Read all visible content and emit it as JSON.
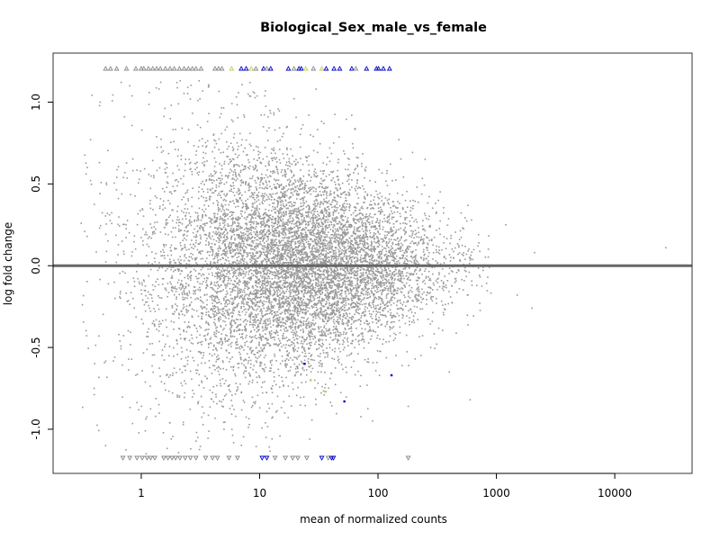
{
  "chart_data": {
    "type": "scatter",
    "subtype": "MA plot",
    "title": "Biological_Sex_male_vs_female",
    "xlabel": "mean of normalized counts",
    "ylabel": "log fold change",
    "x_scale": "log10",
    "xlim": [
      0.18,
      45000
    ],
    "ylim": [
      -1.27,
      1.3
    ],
    "x_ticks": [
      {
        "value": 1,
        "label": "1"
      },
      {
        "value": 10,
        "label": "10"
      },
      {
        "value": 100,
        "label": "100"
      },
      {
        "value": 1000,
        "label": "1000"
      },
      {
        "value": 10000,
        "label": "10000"
      }
    ],
    "y_ticks": [
      {
        "value": -1.0,
        "label": "-1.0"
      },
      {
        "value": -0.5,
        "label": "-0.5"
      },
      {
        "value": 0.0,
        "label": "0.0"
      },
      {
        "value": 0.5,
        "label": "0.5"
      },
      {
        "value": 1.0,
        "label": "1.0"
      }
    ],
    "reference_line": {
      "y": 0,
      "color": "#666666"
    },
    "grid": false,
    "legend": "none",
    "colors": {
      "not_significant": "#999999",
      "significant": "#0000cc",
      "moderate": "#c8c85a"
    },
    "series": [
      {
        "points_ns": [
          [
            0.35,
            0.6
          ],
          [
            0.4,
            -0.75
          ],
          [
            0.45,
            1.0
          ],
          [
            0.5,
            -1.1
          ],
          [
            0.8,
            1.1
          ],
          [
            1.1,
            -1.15
          ],
          [
            2.0,
            1.12
          ],
          [
            3.0,
            -1.05
          ],
          [
            150,
            0.77
          ],
          [
            250,
            0.65
          ],
          [
            400,
            -0.65
          ],
          [
            600,
            -0.82
          ],
          [
            1200,
            0.25
          ],
          [
            1500,
            -0.18
          ],
          [
            2000,
            -0.26
          ],
          [
            2100,
            0.08
          ],
          [
            27000,
            0.11
          ],
          [
            180,
            -0.86
          ],
          [
            90,
            -0.95
          ],
          [
            60,
            0.92
          ],
          [
            30,
            1.08
          ],
          [
            0.6,
            -0.2
          ],
          [
            5.0,
            -1.0
          ],
          [
            8.0,
            1.05
          ]
        ],
        "points_sig": [
          [
            24,
            -0.6
          ],
          [
            52,
            -0.83
          ],
          [
            130,
            -0.67
          ]
        ],
        "points_moderate": [
          [
            36,
            -0.77
          ],
          [
            27,
            -0.7
          ]
        ],
        "clipped_high": [
          {
            "x": 0.5,
            "sig": "ns"
          },
          {
            "x": 0.55,
            "sig": "ns"
          },
          {
            "x": 0.62,
            "sig": "ns"
          },
          {
            "x": 0.75,
            "sig": "ns"
          },
          {
            "x": 0.9,
            "sig": "ns"
          },
          {
            "x": 1.0,
            "sig": "ns"
          },
          {
            "x": 1.05,
            "sig": "ns"
          },
          {
            "x": 1.15,
            "sig": "ns"
          },
          {
            "x": 1.25,
            "sig": "ns"
          },
          {
            "x": 1.35,
            "sig": "ns"
          },
          {
            "x": 1.45,
            "sig": "ns"
          },
          {
            "x": 1.6,
            "sig": "ns"
          },
          {
            "x": 1.75,
            "sig": "ns"
          },
          {
            "x": 1.9,
            "sig": "ns"
          },
          {
            "x": 2.1,
            "sig": "ns"
          },
          {
            "x": 2.3,
            "sig": "ns"
          },
          {
            "x": 2.5,
            "sig": "ns"
          },
          {
            "x": 2.7,
            "sig": "ns"
          },
          {
            "x": 2.9,
            "sig": "ns"
          },
          {
            "x": 3.2,
            "sig": "ns"
          },
          {
            "x": 4.2,
            "sig": "ns"
          },
          {
            "x": 4.5,
            "sig": "ns"
          },
          {
            "x": 4.8,
            "sig": "ns"
          },
          {
            "x": 5.8,
            "sig": "moderate"
          },
          {
            "x": 7.0,
            "sig": "sig"
          },
          {
            "x": 7.7,
            "sig": "sig"
          },
          {
            "x": 8.5,
            "sig": "moderate"
          },
          {
            "x": 9.3,
            "sig": "ns"
          },
          {
            "x": 10.8,
            "sig": "sig"
          },
          {
            "x": 11.5,
            "sig": "ns"
          },
          {
            "x": 12.4,
            "sig": "sig"
          },
          {
            "x": 17.5,
            "sig": "sig"
          },
          {
            "x": 19.5,
            "sig": "ns"
          },
          {
            "x": 21.5,
            "sig": "sig"
          },
          {
            "x": 22.5,
            "sig": "sig"
          },
          {
            "x": 24.5,
            "sig": "moderate"
          },
          {
            "x": 28.5,
            "sig": "ns"
          },
          {
            "x": 33.5,
            "sig": "moderate"
          },
          {
            "x": 36.5,
            "sig": "sig"
          },
          {
            "x": 42.5,
            "sig": "sig"
          },
          {
            "x": 47.5,
            "sig": "sig"
          },
          {
            "x": 60,
            "sig": "sig"
          },
          {
            "x": 65,
            "sig": "ns"
          },
          {
            "x": 80,
            "sig": "sig"
          },
          {
            "x": 97,
            "sig": "sig"
          },
          {
            "x": 101,
            "sig": "sig"
          },
          {
            "x": 111,
            "sig": "sig"
          },
          {
            "x": 125,
            "sig": "sig"
          }
        ],
        "clipped_low": [
          {
            "x": 0.7,
            "sig": "ns"
          },
          {
            "x": 0.8,
            "sig": "ns"
          },
          {
            "x": 0.92,
            "sig": "ns"
          },
          {
            "x": 1.02,
            "sig": "ns"
          },
          {
            "x": 1.12,
            "sig": "ns"
          },
          {
            "x": 1.2,
            "sig": "ns"
          },
          {
            "x": 1.3,
            "sig": "ns"
          },
          {
            "x": 1.55,
            "sig": "ns"
          },
          {
            "x": 1.68,
            "sig": "ns"
          },
          {
            "x": 1.82,
            "sig": "ns"
          },
          {
            "x": 1.95,
            "sig": "ns"
          },
          {
            "x": 2.12,
            "sig": "ns"
          },
          {
            "x": 2.35,
            "sig": "ns"
          },
          {
            "x": 2.6,
            "sig": "ns"
          },
          {
            "x": 2.9,
            "sig": "ns"
          },
          {
            "x": 3.5,
            "sig": "ns"
          },
          {
            "x": 4.0,
            "sig": "ns"
          },
          {
            "x": 4.4,
            "sig": "ns"
          },
          {
            "x": 5.5,
            "sig": "ns"
          },
          {
            "x": 6.5,
            "sig": "ns"
          },
          {
            "x": 10.5,
            "sig": "sig"
          },
          {
            "x": 11.5,
            "sig": "sig"
          },
          {
            "x": 13.5,
            "sig": "ns"
          },
          {
            "x": 16.5,
            "sig": "ns"
          },
          {
            "x": 19,
            "sig": "ns"
          },
          {
            "x": 21,
            "sig": "ns"
          },
          {
            "x": 25,
            "sig": "ns"
          },
          {
            "x": 33.5,
            "sig": "sig"
          },
          {
            "x": 38,
            "sig": "ns"
          },
          {
            "x": 40.5,
            "sig": "sig"
          },
          {
            "x": 42,
            "sig": "sig"
          },
          {
            "x": 180,
            "sig": "ns"
          }
        ]
      }
    ],
    "density_model": {
      "n_points": 9000,
      "log10_x_center": 1.3,
      "log10_x_sd": 0.6,
      "lfc_spread_at_low_counts": 0.55,
      "lfc_spread_at_high_counts": 0.12,
      "seed": 12345
    }
  }
}
